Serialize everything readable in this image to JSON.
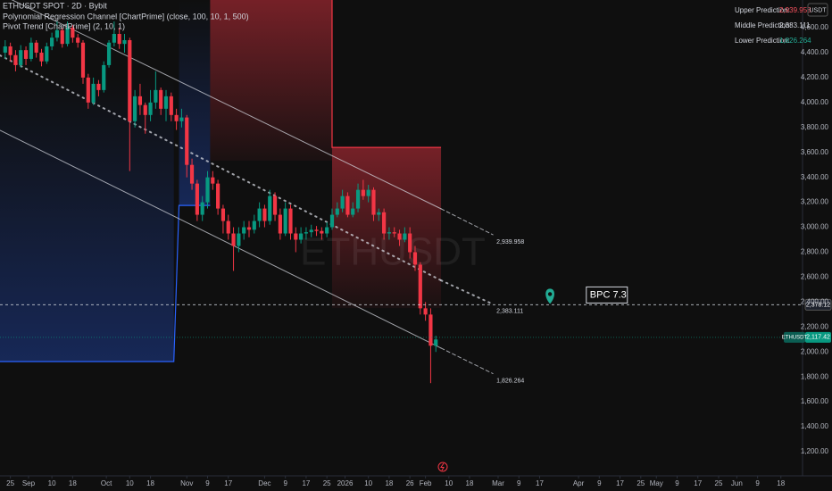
{
  "chart_data": {
    "type": "candlestick",
    "title": "ETHUSDT SPOT · 2D · Bybit",
    "indicators": [
      "Polynomial Regression Channel [ChartPrime] (close, 100, 10, 1, 500)",
      "Pivot Trend [ChartPrime] (2, 10, 1)"
    ],
    "watermark": "ETHUSDT",
    "currency": "USDT",
    "up_color": "#089981",
    "down_color": "#f23645",
    "x": [
      -2,
      0,
      2,
      4,
      6,
      8,
      10,
      12,
      14,
      16,
      18,
      20,
      22,
      24,
      26,
      28,
      30,
      32,
      34,
      36,
      38,
      40,
      42,
      44,
      46,
      48,
      50,
      52,
      54,
      56,
      58,
      60,
      62,
      64,
      66,
      68,
      70,
      72,
      74,
      76,
      78,
      80,
      82,
      84,
      86,
      88,
      90,
      92,
      94,
      96,
      98,
      100,
      102,
      104,
      106,
      108,
      110,
      112,
      114,
      116,
      118,
      120,
      122,
      124,
      126,
      128,
      130,
      132,
      134,
      136,
      138,
      140,
      142,
      144,
      146,
      148,
      150,
      152,
      154,
      156,
      158,
      160,
      162,
      164
    ],
    "open": [
      4400,
      4450,
      4380,
      4300,
      4420,
      4350,
      4480,
      4400,
      4330,
      4450,
      4520,
      4580,
      4470,
      4600,
      4520,
      4480,
      4200,
      4000,
      4150,
      4100,
      4300,
      4480,
      4550,
      4470,
      4500,
      3850,
      4050,
      3980,
      3900,
      4000,
      4100,
      3950,
      4050,
      3900,
      3850,
      3880,
      3500,
      3350,
      3100,
      3200,
      3400,
      3350,
      3150,
      3050,
      2950,
      2850,
      2950,
      3000,
      2980,
      3050,
      3150,
      3050,
      3250,
      3100,
      2950,
      3150,
      2950,
      2900,
      2950,
      2960,
      2980,
      2970,
      2950,
      3000,
      3100,
      3150,
      3250,
      3100,
      3150,
      3300,
      3250,
      3300,
      3100,
      3120,
      2950,
      2960,
      2950,
      2900,
      2950,
      2800,
      2700,
      2350,
      2300,
      2050
    ],
    "high": [
      4500,
      4480,
      4420,
      4460,
      4450,
      4520,
      4500,
      4430,
      4480,
      4560,
      4650,
      4600,
      4650,
      4620,
      4550,
      4500,
      4230,
      4200,
      4180,
      4330,
      4500,
      4650,
      4600,
      4550,
      4520,
      4100,
      4150,
      4000,
      4100,
      4250,
      4120,
      4100,
      4080,
      3950,
      3950,
      3900,
      3550,
      3380,
      3250,
      3450,
      3450,
      3380,
      3180,
      3100,
      3000,
      3000,
      3050,
      3050,
      3100,
      3200,
      3180,
      3300,
      3280,
      3150,
      3200,
      3180,
      3000,
      3000,
      3000,
      3020,
      3010,
      3000,
      3040,
      3150,
      3200,
      3300,
      3280,
      3200,
      3350,
      3380,
      3340,
      3320,
      3150,
      3150,
      3000,
      3000,
      2980,
      3000,
      3000,
      2850,
      2720,
      2400,
      2350,
      2130
    ],
    "low": [
      4350,
      4330,
      4250,
      4280,
      4300,
      4330,
      4360,
      4290,
      4310,
      4420,
      4490,
      4440,
      4450,
      4480,
      4440,
      4150,
      3950,
      3980,
      4050,
      4080,
      4280,
      4450,
      4430,
      4400,
      3450,
      3800,
      3900,
      3750,
      3850,
      3950,
      3900,
      3850,
      3850,
      3780,
      3800,
      3400,
      3300,
      3050,
      3050,
      3150,
      3300,
      3100,
      2950,
      2900,
      2650,
      2800,
      2900,
      2920,
      2950,
      3000,
      3000,
      3020,
      3050,
      2900,
      2930,
      2900,
      2800,
      2870,
      2900,
      2920,
      2930,
      2900,
      2920,
      2980,
      3080,
      3120,
      3080,
      3080,
      3120,
      3220,
      3200,
      3050,
      3050,
      2900,
      2900,
      2920,
      2850,
      2880,
      2750,
      2650,
      2300,
      2250,
      1750,
      2000
    ],
    "close": [
      4450,
      4380,
      4300,
      4420,
      4350,
      4480,
      4400,
      4330,
      4450,
      4520,
      4580,
      4470,
      4600,
      4520,
      4480,
      4200,
      4000,
      4150,
      4100,
      4300,
      4480,
      4550,
      4470,
      4500,
      3850,
      4050,
      3980,
      3900,
      4000,
      4100,
      3950,
      4050,
      3900,
      3850,
      3880,
      3500,
      3350,
      3100,
      3200,
      3400,
      3350,
      3150,
      3050,
      2950,
      2850,
      2950,
      3000,
      2980,
      3050,
      3150,
      3050,
      3250,
      3100,
      2950,
      3150,
      2950,
      2900,
      2950,
      2960,
      2980,
      2970,
      2950,
      3000,
      3100,
      3150,
      3250,
      3100,
      3150,
      3300,
      3250,
      3300,
      3100,
      3120,
      2950,
      2960,
      2950,
      2900,
      2950,
      2800,
      2700,
      2350,
      2300,
      2050,
      2100
    ],
    "xlim": [
      -4,
      305
    ],
    "xticks": [
      {
        "value": 0,
        "label": "25"
      },
      {
        "value": 7,
        "label": "Sep"
      },
      {
        "value": 16,
        "label": "10"
      },
      {
        "value": 24,
        "label": "18"
      },
      {
        "value": 37,
        "label": "Oct"
      },
      {
        "value": 46,
        "label": "10"
      },
      {
        "value": 54,
        "label": "18"
      },
      {
        "value": 68,
        "label": "Nov"
      },
      {
        "value": 76,
        "label": "9"
      },
      {
        "value": 84,
        "label": "17"
      },
      {
        "value": 98,
        "label": "Dec"
      },
      {
        "value": 106,
        "label": "9"
      },
      {
        "value": 114,
        "label": "17"
      },
      {
        "value": 122,
        "label": "25"
      },
      {
        "value": 129,
        "label": "2026"
      },
      {
        "value": 138,
        "label": "10"
      },
      {
        "value": 146,
        "label": "18"
      },
      {
        "value": 154,
        "label": "26"
      },
      {
        "value": 160,
        "label": "Feb"
      },
      {
        "value": 169,
        "label": "10"
      },
      {
        "value": 177,
        "label": "18"
      },
      {
        "value": 188,
        "label": "Mar"
      },
      {
        "value": 196,
        "label": "9"
      },
      {
        "value": 204,
        "label": "17"
      },
      {
        "value": 219,
        "label": "Apr"
      },
      {
        "value": 227,
        "label": "9"
      },
      {
        "value": 235,
        "label": "17"
      },
      {
        "value": 243,
        "label": "25"
      },
      {
        "value": 249,
        "label": "May"
      },
      {
        "value": 257,
        "label": "9"
      },
      {
        "value": 265,
        "label": "17"
      },
      {
        "value": 273,
        "label": "25"
      },
      {
        "value": 280,
        "label": "Jun"
      },
      {
        "value": 288,
        "label": "9"
      },
      {
        "value": 297,
        "label": "18"
      }
    ],
    "ylim": [
      1014,
      4822
    ],
    "yticks": [
      {
        "value": 1200,
        "label": "1,200.00"
      },
      {
        "value": 1400,
        "label": "1,400.00"
      },
      {
        "value": 1600,
        "label": "1,600.00"
      },
      {
        "value": 1800,
        "label": "1,800.00"
      },
      {
        "value": 2000,
        "label": "2,000.00"
      },
      {
        "value": 2200,
        "label": "2,200.00"
      },
      {
        "value": 2400,
        "label": "2,400.00"
      },
      {
        "value": 2600,
        "label": "2,600.00"
      },
      {
        "value": 2800,
        "label": "2,800.00"
      },
      {
        "value": 3000,
        "label": "3,000.00"
      },
      {
        "value": 3200,
        "label": "3,200.00"
      },
      {
        "value": 3400,
        "label": "3,400.00"
      },
      {
        "value": 3600,
        "label": "3,600.00"
      },
      {
        "value": 3800,
        "label": "3,800.00"
      },
      {
        "value": 4000,
        "label": "4,000.00"
      },
      {
        "value": 4200,
        "label": "4,200.00"
      },
      {
        "value": 4400,
        "label": "4,400.00"
      },
      {
        "value": 4600,
        "label": "4,600.00"
      }
    ],
    "grid": false,
    "channel": [
      {
        "name": "Upper Prediction:",
        "color": "#f7525f",
        "line_color": "#d1d4dc",
        "style": "solid",
        "x": [
          -4,
          166,
          186
        ],
        "values": [
          4870,
          3148,
          2939.958
        ],
        "value_label": "2,939.958"
      },
      {
        "name": "Middle Prediction:",
        "color": "#d1d4dc",
        "line_color": "#d1d4dc",
        "style": "dotted",
        "x": [
          -4,
          166,
          186
        ],
        "values": [
          4378,
          2574,
          2383.111
        ],
        "value_label": "2,383.111"
      },
      {
        "name": "Lower Prediction:",
        "color": "#22ab94",
        "line_color": "#d1d4dc",
        "style": "solid",
        "x": [
          -4,
          166,
          186
        ],
        "values": [
          3777,
          2031,
          1826.264
        ],
        "value_label": "1,826.264"
      }
    ],
    "pivot_trend": [
      {
        "color": "#2962ff",
        "fill": "up",
        "x": [
          -4,
          63,
          65,
          77
        ],
        "values": [
          1923,
          1923,
          3175,
          3175
        ]
      },
      {
        "color": "#f23645",
        "fill": "down",
        "x": [
          77,
          124,
          124,
          166
        ],
        "values": [
          4900,
          4900,
          3640,
          3640
        ]
      }
    ],
    "price_lines": [
      {
        "value": 2117.42,
        "label": "2,117.42",
        "name": "ETHUSDT",
        "color": "#089981",
        "style": "dotted"
      },
      {
        "value": 2378.12,
        "label": "2,378.12",
        "color": "#d1d4dc",
        "style": "dashed"
      }
    ],
    "annotation": {
      "text": "BPC 7.3",
      "x": 222,
      "pin_x": 208,
      "y": 2378.12,
      "pin_color": "#22ab94"
    }
  }
}
